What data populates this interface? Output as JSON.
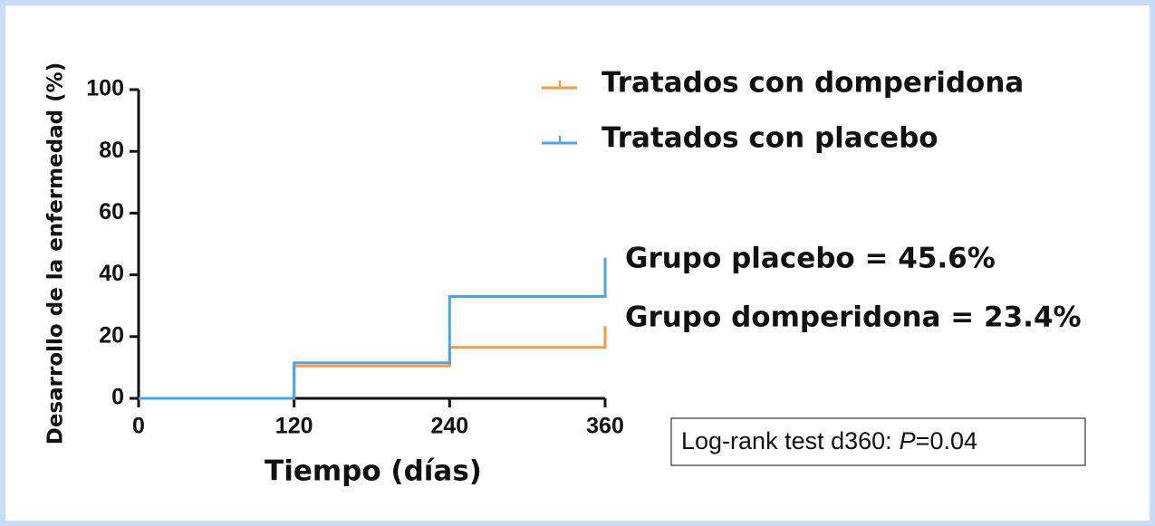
{
  "chart_data": {
    "type": "step",
    "x_label": "Tiempo (días)",
    "y_label": "Desarrollo de la enfermedad (%)",
    "x": [
      0,
      120,
      240,
      360
    ],
    "series": [
      {
        "name": "Tratados con domperidona",
        "color": "#f39a4c",
        "values": [
          0,
          10.5,
          16.5,
          23.4
        ]
      },
      {
        "name": "Tratados con placebo",
        "color": "#4da3e6",
        "values": [
          0,
          11.5,
          33,
          45.6
        ]
      }
    ],
    "xlim": [
      0,
      360
    ],
    "xticks": [
      0,
      120,
      240,
      360
    ],
    "ylim": [
      0,
      100
    ],
    "yticks": [
      0,
      20,
      40,
      60,
      80,
      100
    ],
    "annotations": [
      "Grupo placebo = 45.6%",
      "Grupo domperidona = 23.4%"
    ],
    "test_box": {
      "prefix": "Log-rank test d360:",
      "italic": "P",
      "suffix": "=0.04"
    }
  }
}
